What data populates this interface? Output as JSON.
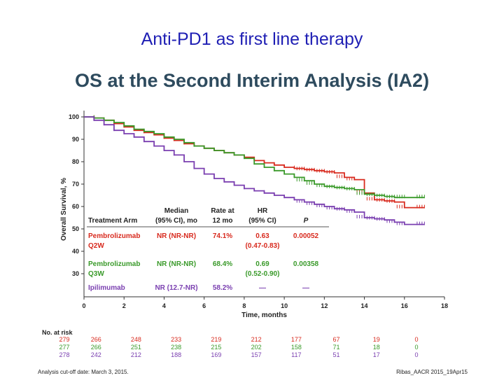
{
  "slide_title": "Anti-PD1 as first line therapy",
  "chart_data": {
    "type": "line",
    "title": "OS at the Second Interim Analysis (IA2)",
    "xlabel": "Time, months",
    "ylabel": "Overall Survival, %",
    "xlim": [
      0,
      18
    ],
    "ylim": [
      30,
      100
    ],
    "x_ticks": [
      0,
      2,
      4,
      6,
      8,
      10,
      12,
      14,
      16,
      18
    ],
    "y_ticks": [
      30,
      40,
      50,
      60,
      70,
      80,
      90,
      100
    ],
    "series": [
      {
        "name": "Pembrolizumab Q2W",
        "color": "#d82a1e",
        "points": [
          [
            0,
            100
          ],
          [
            0.5,
            99.5
          ],
          [
            1,
            98.5
          ],
          [
            1.5,
            97
          ],
          [
            2,
            95.5
          ],
          [
            2.5,
            94
          ],
          [
            3,
            93
          ],
          [
            3.5,
            92
          ],
          [
            4,
            90.5
          ],
          [
            4.5,
            89.5
          ],
          [
            5,
            88
          ],
          [
            5.5,
            87
          ],
          [
            6,
            86
          ],
          [
            6.5,
            85
          ],
          [
            7,
            84
          ],
          [
            7.5,
            83
          ],
          [
            8,
            82
          ],
          [
            8.5,
            80.5
          ],
          [
            9,
            79.5
          ],
          [
            9.5,
            78.5
          ],
          [
            10,
            77.5
          ],
          [
            10.5,
            77
          ],
          [
            11,
            76.5
          ],
          [
            11.5,
            76
          ],
          [
            12,
            75.5
          ],
          [
            12.5,
            75
          ],
          [
            13,
            73
          ],
          [
            13.5,
            72
          ],
          [
            14,
            66
          ],
          [
            14.5,
            63
          ],
          [
            15,
            62.5
          ],
          [
            15.5,
            62
          ],
          [
            16,
            59.5
          ],
          [
            17,
            59.5
          ]
        ]
      },
      {
        "name": "Pembrolizumab Q3W",
        "color": "#3a9a2a",
        "points": [
          [
            0,
            100
          ],
          [
            0.5,
            99.5
          ],
          [
            1,
            98.5
          ],
          [
            1.5,
            97.5
          ],
          [
            2,
            96
          ],
          [
            2.5,
            94.5
          ],
          [
            3,
            93.5
          ],
          [
            3.5,
            92.5
          ],
          [
            4,
            91
          ],
          [
            4.5,
            90
          ],
          [
            5,
            88.5
          ],
          [
            5.5,
            87
          ],
          [
            6,
            86
          ],
          [
            6.5,
            85
          ],
          [
            7,
            84
          ],
          [
            7.5,
            83
          ],
          [
            8,
            81.5
          ],
          [
            8.5,
            79
          ],
          [
            9,
            77.5
          ],
          [
            9.5,
            76
          ],
          [
            10,
            74.5
          ],
          [
            10.5,
            73
          ],
          [
            11,
            71.5
          ],
          [
            11.5,
            70
          ],
          [
            12,
            69
          ],
          [
            12.5,
            68.5
          ],
          [
            13,
            68
          ],
          [
            13.5,
            67.5
          ],
          [
            14,
            65.5
          ],
          [
            14.5,
            65
          ],
          [
            15,
            64.5
          ],
          [
            15.5,
            64
          ],
          [
            16,
            64
          ],
          [
            17,
            64
          ]
        ]
      },
      {
        "name": "Ipilimumab",
        "color": "#7a3fb0",
        "points": [
          [
            0,
            100
          ],
          [
            0.5,
            98.5
          ],
          [
            1,
            96.5
          ],
          [
            1.5,
            94
          ],
          [
            2,
            92.5
          ],
          [
            2.5,
            91
          ],
          [
            3,
            89
          ],
          [
            3.5,
            87
          ],
          [
            4,
            85
          ],
          [
            4.5,
            83
          ],
          [
            5,
            80
          ],
          [
            5.5,
            77
          ],
          [
            6,
            74.5
          ],
          [
            6.5,
            72.5
          ],
          [
            7,
            71
          ],
          [
            7.5,
            69.5
          ],
          [
            8,
            68
          ],
          [
            8.5,
            67
          ],
          [
            9,
            66
          ],
          [
            9.5,
            65
          ],
          [
            10,
            64
          ],
          [
            10.5,
            63
          ],
          [
            11,
            62
          ],
          [
            11.5,
            61
          ],
          [
            12,
            60
          ],
          [
            12.5,
            59
          ],
          [
            13,
            58.5
          ],
          [
            13.5,
            57.5
          ],
          [
            14,
            55
          ],
          [
            14.5,
            54.5
          ],
          [
            15,
            54
          ],
          [
            15.5,
            53
          ],
          [
            16,
            52
          ],
          [
            17,
            52
          ]
        ]
      }
    ],
    "summary_table": {
      "legend_title": "Treatment Arm",
      "headers": [
        "Median (95% CI), mo",
        "Rate at 12 mo",
        "HR (95% CI)",
        "P"
      ],
      "rows": [
        {
          "arm": "Pembrolizumab Q2W",
          "color": "#d82a1e",
          "median": "NR (NR-NR)",
          "rate": "74.1%",
          "hr": "0.63",
          "hr_ci": "(0.47-0.83)",
          "p": "0.00052"
        },
        {
          "arm": "Pembrolizumab Q3W",
          "color": "#3a9a2a",
          "median": "NR (NR-NR)",
          "rate": "68.4%",
          "hr": "0.69",
          "hr_ci": "(0.52-0.90)",
          "p": "0.00358"
        },
        {
          "arm": "Ipilimumab",
          "color": "#7a3fb0",
          "median": "NR (12.7-NR)",
          "rate": "58.2%",
          "hr": "—",
          "hr_ci": "",
          "p": "—"
        }
      ]
    },
    "at_risk": {
      "label": "No. at risk",
      "x": [
        0,
        2,
        4,
        6,
        8,
        10,
        12,
        14,
        16,
        18
      ],
      "rows": [
        {
          "color": "#d82a1e",
          "values": [
            "279",
            "266",
            "248",
            "233",
            "219",
            "212",
            "177",
            "67",
            "19",
            "0"
          ]
        },
        {
          "color": "#3a9a2a",
          "values": [
            "277",
            "266",
            "251",
            "238",
            "215",
            "202",
            "158",
            "71",
            "18",
            "0"
          ]
        },
        {
          "color": "#7a3fb0",
          "values": [
            "278",
            "242",
            "212",
            "188",
            "169",
            "157",
            "117",
            "51",
            "17",
            "0"
          ]
        }
      ]
    }
  },
  "footer": {
    "left": "Analysis cut-off date: March 3, 2015.",
    "right": "Ribas_AACR 2015_19Apr15"
  }
}
